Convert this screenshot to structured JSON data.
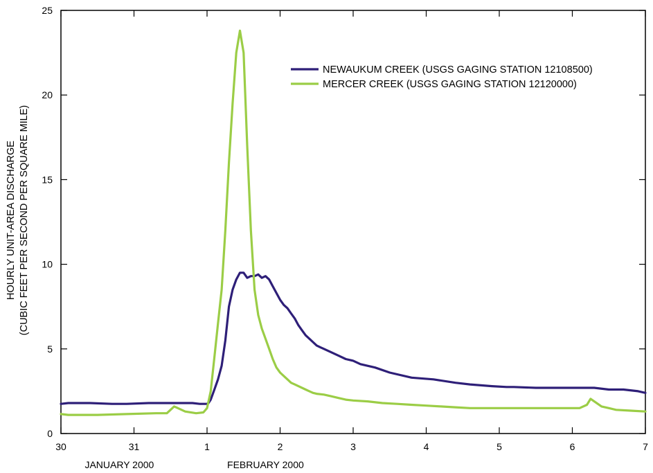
{
  "chart_data": {
    "type": "line",
    "ylabel_line1": "HOURLY UNIT-AREA DISCHARGE",
    "ylabel_line2": "(CUBIC FEET PER SECOND PER SQUARE MILE)",
    "ylim": [
      0,
      25
    ],
    "yticks": [
      0,
      5,
      10,
      15,
      20,
      25
    ],
    "xlim": [
      0,
      8
    ],
    "x_tick_labels": [
      "30",
      "31",
      "1",
      "2",
      "3",
      "4",
      "5",
      "6",
      "7"
    ],
    "month_labels": [
      {
        "label": "JANUARY 2000",
        "x": 0.8
      },
      {
        "label": "FEBRUARY 2000",
        "x": 2.8
      }
    ],
    "legend_position": "top-right",
    "series": [
      {
        "name": "NEWAUKUM CREEK (USGS GAGING STATION 12108500)",
        "color": "#2e1f78",
        "x": [
          0,
          0.1,
          0.4,
          0.7,
          0.9,
          1.2,
          1.5,
          1.8,
          1.9,
          2.0,
          2.02,
          2.05,
          2.1,
          2.15,
          2.2,
          2.25,
          2.3,
          2.35,
          2.4,
          2.45,
          2.5,
          2.55,
          2.6,
          2.65,
          2.7,
          2.75,
          2.8,
          2.85,
          2.9,
          2.95,
          3.0,
          3.05,
          3.1,
          3.15,
          3.2,
          3.25,
          3.3,
          3.35,
          3.4,
          3.45,
          3.5,
          3.55,
          3.6,
          3.7,
          3.8,
          3.9,
          4.0,
          4.1,
          4.3,
          4.5,
          4.8,
          5.1,
          5.4,
          5.6,
          5.9,
          6.1,
          6.2,
          6.5,
          6.8,
          7.0,
          7.3,
          7.5,
          7.7,
          7.9,
          8.0
        ],
        "y": [
          1.75,
          1.8,
          1.8,
          1.75,
          1.75,
          1.8,
          1.8,
          1.8,
          1.75,
          1.75,
          1.8,
          2.0,
          2.6,
          3.2,
          4.0,
          5.5,
          7.5,
          8.5,
          9.1,
          9.5,
          9.5,
          9.2,
          9.3,
          9.3,
          9.4,
          9.2,
          9.3,
          9.1,
          8.7,
          8.3,
          7.9,
          7.6,
          7.4,
          7.1,
          6.8,
          6.4,
          6.1,
          5.8,
          5.6,
          5.4,
          5.2,
          5.1,
          5.0,
          4.8,
          4.6,
          4.4,
          4.3,
          4.1,
          3.9,
          3.6,
          3.3,
          3.2,
          3.0,
          2.9,
          2.8,
          2.75,
          2.75,
          2.7,
          2.7,
          2.7,
          2.7,
          2.6,
          2.6,
          2.5,
          2.4
        ]
      },
      {
        "name": "MERCER CREEK (USGS GAGING STATION 12120000)",
        "color": "#9bcd46",
        "x": [
          0,
          0.1,
          0.5,
          0.9,
          1.3,
          1.45,
          1.55,
          1.7,
          1.85,
          1.95,
          2.0,
          2.05,
          2.1,
          2.15,
          2.2,
          2.25,
          2.3,
          2.35,
          2.4,
          2.45,
          2.5,
          2.55,
          2.6,
          2.65,
          2.7,
          2.75,
          2.8,
          2.85,
          2.9,
          2.95,
          3.0,
          3.05,
          3.1,
          3.15,
          3.2,
          3.25,
          3.3,
          3.35,
          3.4,
          3.45,
          3.5,
          3.6,
          3.7,
          3.8,
          3.9,
          4.0,
          4.2,
          4.4,
          4.6,
          4.8,
          5.0,
          5.2,
          5.4,
          5.6,
          5.8,
          6.0,
          6.2,
          6.4,
          6.6,
          6.8,
          7.0,
          7.1,
          7.2,
          7.25,
          7.3,
          7.4,
          7.5,
          7.6,
          7.8,
          8.0
        ],
        "y": [
          1.15,
          1.1,
          1.1,
          1.15,
          1.2,
          1.2,
          1.6,
          1.3,
          1.2,
          1.25,
          1.5,
          2.5,
          4.5,
          6.5,
          8.5,
          12.0,
          16.0,
          19.5,
          22.5,
          23.8,
          22.5,
          17.0,
          12.0,
          8.5,
          7.0,
          6.2,
          5.6,
          5.0,
          4.4,
          3.9,
          3.6,
          3.4,
          3.2,
          3.0,
          2.9,
          2.8,
          2.7,
          2.6,
          2.5,
          2.4,
          2.35,
          2.3,
          2.2,
          2.1,
          2.0,
          1.95,
          1.9,
          1.8,
          1.75,
          1.7,
          1.65,
          1.6,
          1.55,
          1.5,
          1.5,
          1.5,
          1.5,
          1.5,
          1.5,
          1.5,
          1.5,
          1.5,
          1.7,
          2.05,
          1.9,
          1.6,
          1.5,
          1.4,
          1.35,
          1.3
        ]
      }
    ]
  }
}
